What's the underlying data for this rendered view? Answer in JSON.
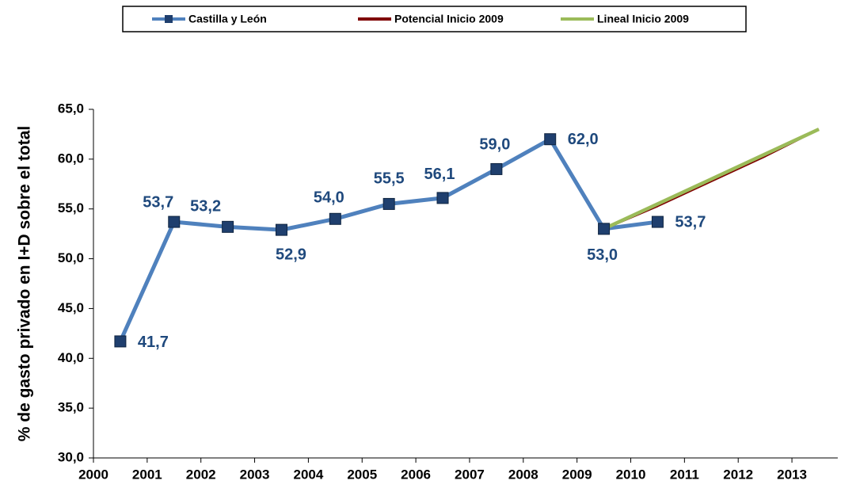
{
  "chart_data": {
    "type": "line",
    "ylabel": "% de gasto privado en I+D sobre el total",
    "categories": [
      "2000",
      "2001",
      "2002",
      "2003",
      "2004",
      "2005",
      "2006",
      "2007",
      "2008",
      "2009",
      "2010",
      "2011",
      "2012",
      "2013"
    ],
    "ylim": [
      30,
      65
    ],
    "yticks": [
      {
        "value": 30,
        "label": "30,0"
      },
      {
        "value": 35,
        "label": "35,0"
      },
      {
        "value": 40,
        "label": "40,0"
      },
      {
        "value": 45,
        "label": "45,0"
      },
      {
        "value": 50,
        "label": "50,0"
      },
      {
        "value": 55,
        "label": "55,0"
      },
      {
        "value": 60,
        "label": "60,0"
      },
      {
        "value": 65,
        "label": "65,0"
      }
    ],
    "series": [
      {
        "name": "Castilla y León",
        "color": "#4f81bd",
        "marker_color": "#1f3f6e",
        "values": [
          41.7,
          53.7,
          53.2,
          52.9,
          54.0,
          55.5,
          56.1,
          59.0,
          62.0,
          53.0,
          53.7,
          null,
          null,
          null
        ],
        "value_labels": [
          "41,7",
          "53,7",
          "53,2",
          "52,9",
          "54,0",
          "55,5",
          "56,1",
          "59,0",
          "62,0",
          "53,0",
          "53,7",
          null,
          null,
          null
        ]
      },
      {
        "name": "Potencial Inicio 2009",
        "color": "#7f0000",
        "values": [
          null,
          null,
          null,
          null,
          null,
          null,
          null,
          null,
          null,
          53.0,
          55.3,
          57.8,
          60.3,
          63.0
        ]
      },
      {
        "name": "Lineal Inicio 2009",
        "color": "#9bbb59",
        "values": [
          null,
          null,
          null,
          null,
          null,
          null,
          null,
          null,
          null,
          53.0,
          55.5,
          58.0,
          60.5,
          63.0
        ]
      }
    ]
  }
}
